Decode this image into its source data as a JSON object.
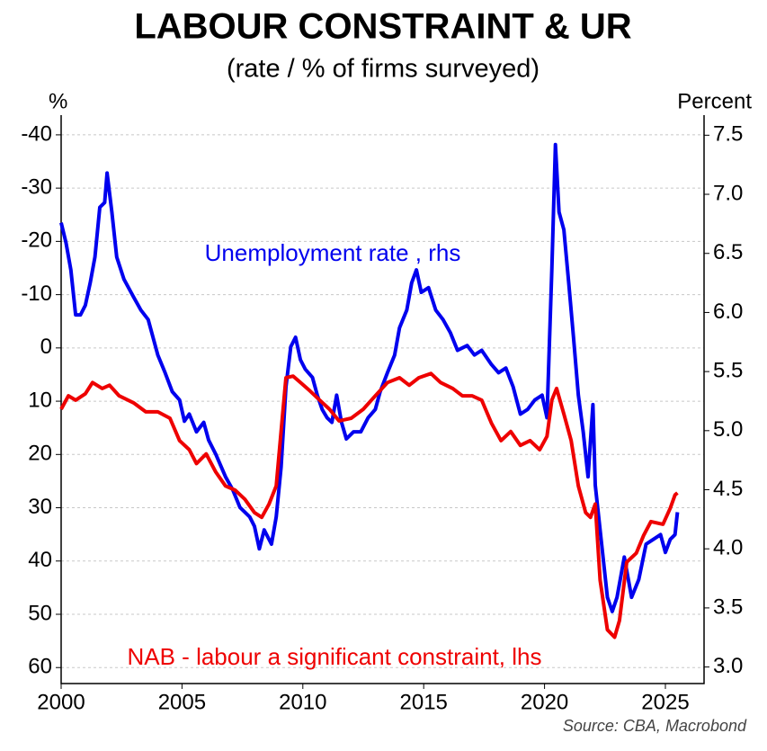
{
  "chart_data": {
    "type": "line",
    "title": "LABOUR CONSTRAINT & UR",
    "subtitle": "(rate / % of firms surveyed)",
    "y_label": "%",
    "y2_label": "Percent",
    "source": "Source: CBA, Macrobond",
    "xlim": [
      2000,
      2026.6
    ],
    "xticks": [
      2000,
      2005,
      2010,
      2015,
      2020,
      2025
    ],
    "ylim": [
      63,
      -43.7
    ],
    "yticks": [
      -40,
      -30,
      -20,
      -10,
      0,
      10,
      20,
      30,
      40,
      50,
      60
    ],
    "y2lim": [
      2.86,
      7.67
    ],
    "y2ticks": [
      {
        "value": 3,
        "label": "3.0"
      },
      3.5,
      {
        "value": 4,
        "label": "4.0"
      },
      4.5,
      {
        "value": 5,
        "label": "5.0"
      },
      5.5,
      {
        "value": 6,
        "label": "6.0"
      },
      6.5,
      {
        "value": 7,
        "label": "7.0"
      },
      7.5
    ],
    "grid": true,
    "series": [
      {
        "name": "Unemployment rate , rhs",
        "color": "#0000ee",
        "axis": "y2",
        "x": [
          2000.0,
          2000.2,
          2000.4,
          2000.6,
          2000.8,
          2001.0,
          2001.2,
          2001.4,
          2001.6,
          2001.8,
          2001.9,
          2002.1,
          2002.3,
          2002.6,
          2003.0,
          2003.3,
          2003.6,
          2004.0,
          2004.3,
          2004.6,
          2004.9,
          2005.1,
          2005.3,
          2005.6,
          2005.9,
          2006.1,
          2006.4,
          2006.8,
          2007.1,
          2007.4,
          2007.8,
          2008.0,
          2008.2,
          2008.4,
          2008.7,
          2008.9,
          2009.1,
          2009.3,
          2009.5,
          2009.7,
          2009.9,
          2010.1,
          2010.4,
          2010.6,
          2010.8,
          2011.0,
          2011.2,
          2011.4,
          2011.6,
          2011.8,
          2012.1,
          2012.4,
          2012.7,
          2013.0,
          2013.2,
          2013.5,
          2013.8,
          2014.0,
          2014.3,
          2014.5,
          2014.7,
          2014.9,
          2015.2,
          2015.5,
          2015.8,
          2016.1,
          2016.4,
          2016.8,
          2017.1,
          2017.4,
          2017.8,
          2018.1,
          2018.4,
          2018.7,
          2019.0,
          2019.3,
          2019.6,
          2019.9,
          2020.1,
          2020.3,
          2020.45,
          2020.6,
          2020.8,
          2021.0,
          2021.2,
          2021.4,
          2021.6,
          2021.8,
          2022.0,
          2022.1,
          2022.4,
          2022.6,
          2022.8,
          2023.0,
          2023.3,
          2023.6,
          2023.9,
          2024.2,
          2024.5,
          2024.8,
          2025.0,
          2025.2,
          2025.4,
          2025.5
        ],
        "values": [
          6.76,
          6.59,
          6.36,
          5.98,
          5.98,
          6.06,
          6.25,
          6.47,
          6.89,
          6.93,
          7.18,
          6.85,
          6.47,
          6.28,
          6.13,
          6.02,
          5.94,
          5.64,
          5.49,
          5.33,
          5.26,
          5.08,
          5.14,
          4.99,
          5.07,
          4.92,
          4.8,
          4.61,
          4.5,
          4.35,
          4.27,
          4.19,
          4.0,
          4.16,
          4.04,
          4.27,
          4.69,
          5.37,
          5.71,
          5.79,
          5.6,
          5.52,
          5.45,
          5.3,
          5.18,
          5.11,
          5.07,
          5.3,
          5.07,
          4.93,
          4.99,
          4.99,
          5.11,
          5.18,
          5.33,
          5.49,
          5.64,
          5.87,
          6.02,
          6.25,
          6.36,
          6.17,
          6.21,
          6.02,
          5.94,
          5.83,
          5.68,
          5.72,
          5.64,
          5.68,
          5.56,
          5.49,
          5.53,
          5.37,
          5.14,
          5.18,
          5.26,
          5.3,
          5.11,
          6.36,
          7.42,
          6.85,
          6.7,
          6.25,
          5.79,
          5.3,
          4.99,
          4.61,
          5.22,
          4.54,
          3.97,
          3.59,
          3.47,
          3.59,
          3.93,
          3.59,
          3.74,
          4.04,
          4.08,
          4.12,
          3.97,
          4.08,
          4.12,
          4.31
        ]
      },
      {
        "name": "NAB - labour a significant constraint, lhs",
        "color": "#ee0000",
        "axis": "y",
        "x": [
          2000.0,
          2000.3,
          2000.6,
          2001.0,
          2001.3,
          2001.7,
          2002.0,
          2002.4,
          2003.0,
          2003.5,
          2004.0,
          2004.5,
          2004.9,
          2005.3,
          2005.6,
          2006.0,
          2006.4,
          2006.8,
          2007.2,
          2007.6,
          2008.0,
          2008.3,
          2008.6,
          2008.9,
          2009.1,
          2009.3,
          2009.6,
          2009.9,
          2010.3,
          2010.7,
          2011.1,
          2011.5,
          2012.0,
          2012.5,
          2013.0,
          2013.5,
          2014.0,
          2014.4,
          2014.8,
          2015.3,
          2015.7,
          2016.2,
          2016.6,
          2017.0,
          2017.4,
          2017.8,
          2018.2,
          2018.6,
          2019.0,
          2019.4,
          2019.8,
          2020.1,
          2020.3,
          2020.5,
          2020.8,
          2021.1,
          2021.4,
          2021.7,
          2021.9,
          2022.1,
          2022.3,
          2022.6,
          2022.9,
          2023.1,
          2023.4,
          2023.8,
          2024.1,
          2024.4,
          2024.9,
          2025.2,
          2025.4,
          2025.5
        ],
        "values": [
          11.5,
          9.0,
          9.8,
          8.6,
          6.5,
          7.6,
          7.0,
          9.0,
          10.3,
          12.0,
          12.0,
          13.2,
          17.4,
          19.1,
          21.7,
          19.9,
          23.3,
          25.9,
          26.7,
          28.4,
          30.9,
          31.8,
          29.3,
          25.9,
          15.7,
          5.6,
          5.3,
          6.5,
          8.1,
          9.8,
          11.5,
          13.7,
          13.2,
          11.5,
          9.0,
          6.5,
          5.6,
          7.0,
          5.6,
          4.8,
          6.5,
          7.6,
          9.0,
          9.0,
          9.8,
          14.1,
          17.4,
          15.7,
          18.3,
          17.4,
          19.1,
          16.6,
          9.8,
          7.6,
          12.4,
          17.4,
          25.9,
          30.9,
          31.8,
          29.3,
          43.6,
          52.9,
          54.3,
          51.2,
          40.2,
          38.5,
          35.2,
          32.6,
          33.1,
          30.1,
          27.6,
          27.2
        ]
      }
    ]
  }
}
